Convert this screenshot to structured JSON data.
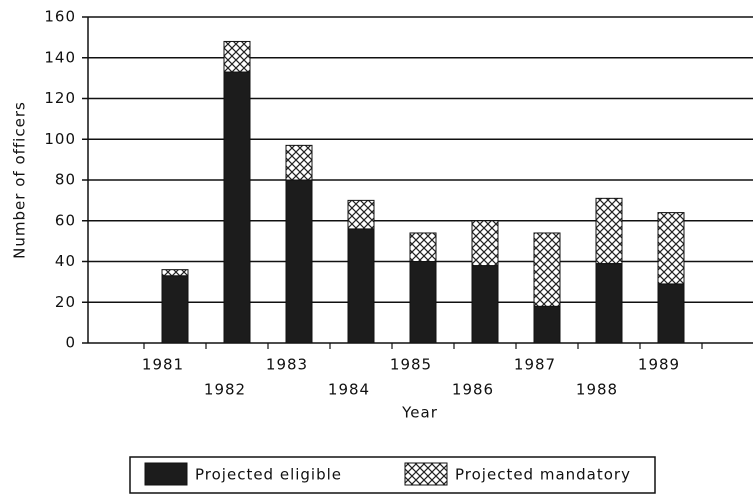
{
  "chart_data": {
    "type": "stacked_bar",
    "categories": [
      "1981",
      "1982",
      "1983",
      "1984",
      "1985",
      "1986",
      "1987",
      "1988",
      "1989"
    ],
    "series": [
      {
        "name": "Projected eligible",
        "color": "#1c1c1c",
        "values": [
          33,
          133,
          80,
          56,
          40,
          38,
          18,
          39,
          29
        ]
      },
      {
        "name": "Projected mandatory",
        "color": "#222222",
        "pattern": "crosshatch",
        "values": [
          3,
          15,
          17,
          14,
          14,
          22,
          36,
          32,
          35
        ]
      }
    ],
    "xlabel": "Year",
    "ylabel": "Number of officers",
    "ylim": [
      0,
      160
    ],
    "yticks": [
      0,
      20,
      40,
      60,
      80,
      100,
      120,
      140,
      160
    ],
    "grid": true,
    "legend": "bottom"
  }
}
